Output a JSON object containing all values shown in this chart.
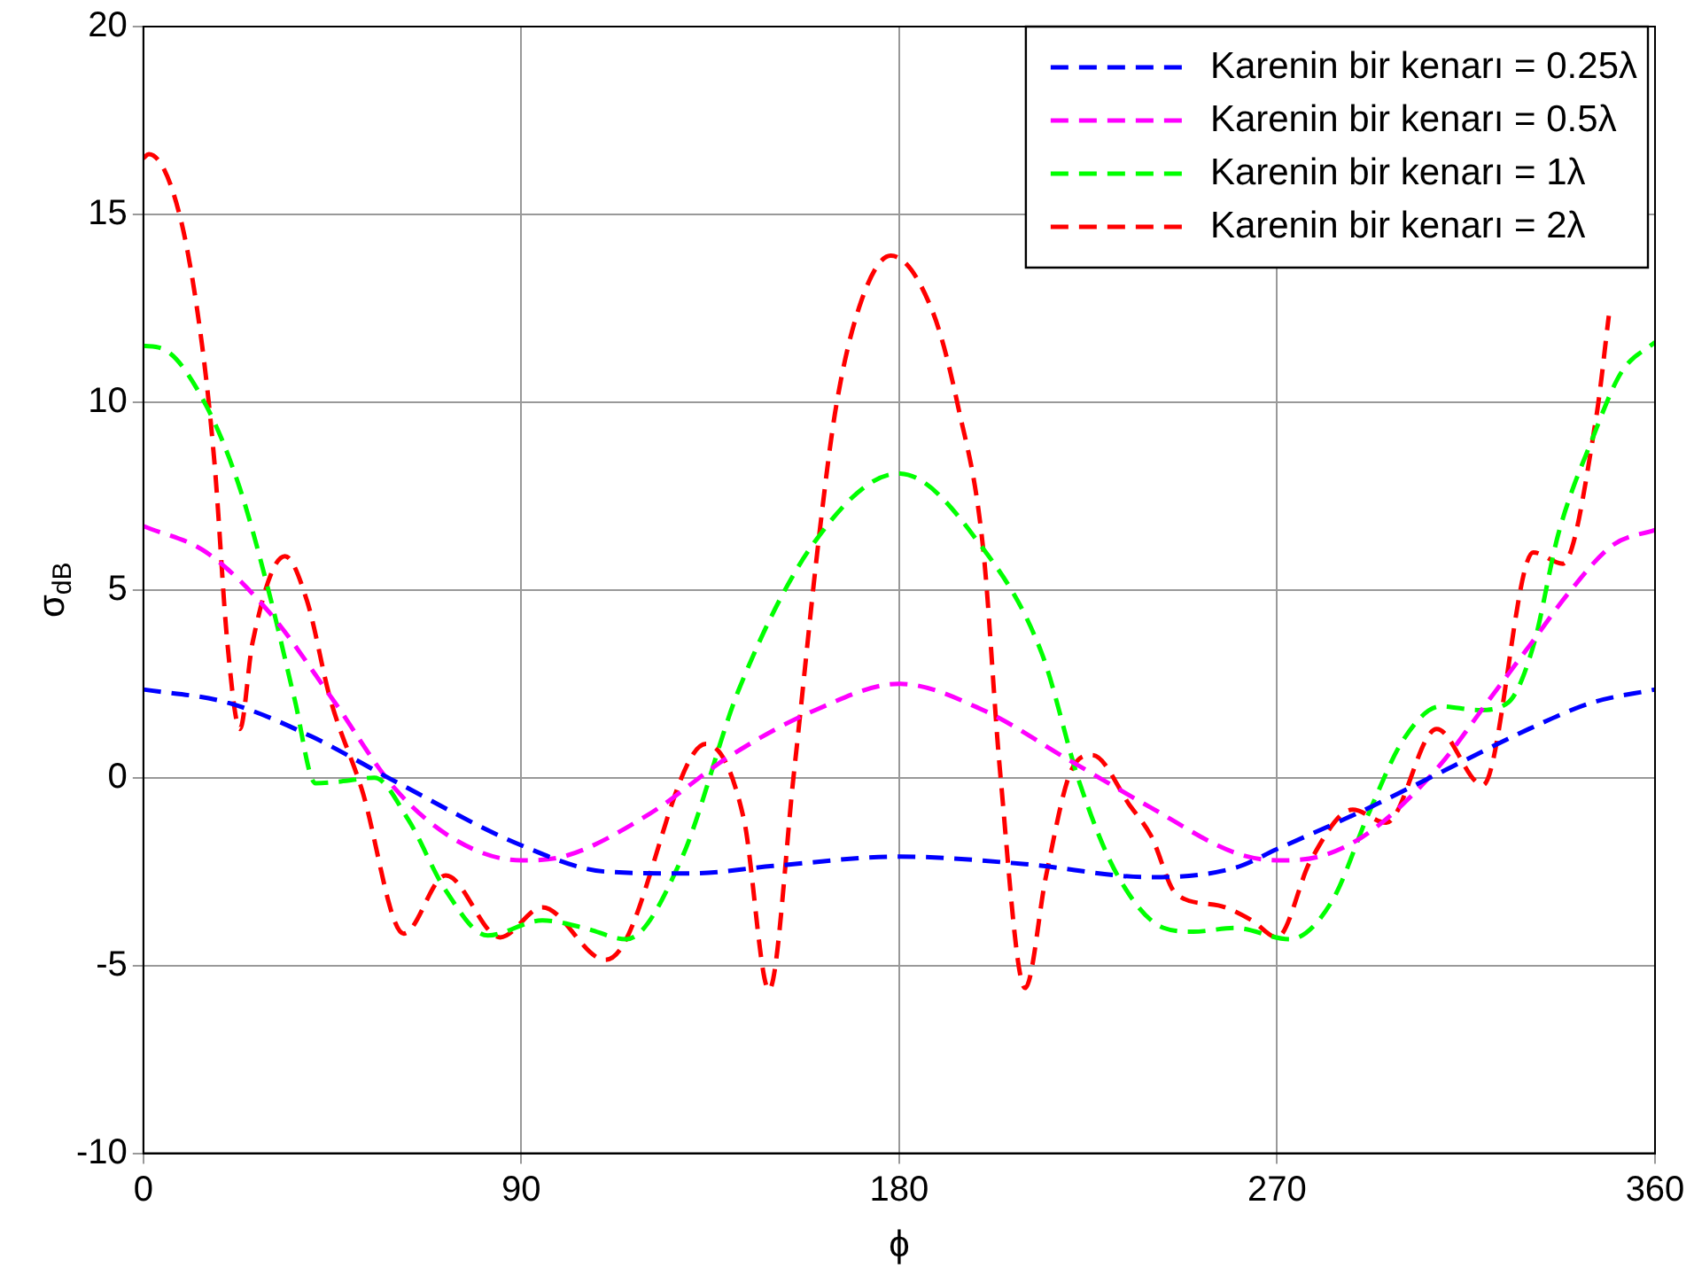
{
  "chart_data": {
    "type": "line",
    "xlabel": "ϕ",
    "ylabel": "σ$_{dB}$",
    "xlim": [
      0,
      360
    ],
    "xticks": [
      0,
      90,
      180,
      270,
      360
    ],
    "ylim": [
      -10,
      20
    ],
    "yticks": [
      -10,
      -5,
      0,
      5,
      10,
      15,
      20
    ],
    "grid": true,
    "legend": "top right",
    "series": [
      {
        "name": "Karenin bir kenarı = 0.25λ",
        "color": "#0000ff",
        "line_style": "dashed",
        "x": [
          0,
          20,
          40,
          60,
          90,
          110,
          130,
          150,
          180,
          210,
          240,
          260,
          270,
          290,
          310,
          330,
          345,
          360
        ],
        "values": [
          2.35,
          2.0,
          1.1,
          -0.1,
          -1.8,
          -2.5,
          -2.55,
          -2.35,
          -2.1,
          -2.3,
          -2.65,
          -2.4,
          -1.9,
          -0.9,
          0.2,
          1.3,
          2.0,
          2.35
        ]
      },
      {
        "name": "Karenin bir kenarı = 0.5λ",
        "color": "#ff00ff",
        "line_style": "dashed",
        "x": [
          0,
          15,
          30,
          45,
          60,
          75,
          90,
          100,
          120,
          140,
          160,
          180,
          200,
          220,
          240,
          260,
          270,
          280,
          290,
          300,
          310,
          320,
          330,
          340,
          350,
          360
        ],
        "values": [
          6.7,
          6.0,
          4.4,
          2.1,
          -0.3,
          -1.7,
          -2.2,
          -2.1,
          -1.0,
          0.6,
          1.8,
          2.5,
          1.8,
          0.5,
          -0.8,
          -2.0,
          -2.2,
          -2.1,
          -1.6,
          -0.7,
          0.5,
          2.0,
          3.5,
          5.0,
          6.2,
          6.6
        ]
      },
      {
        "name": "Karenin bir kenarı = 1λ",
        "color": "#00ff00",
        "line_style": "dashed",
        "x": [
          0,
          5,
          15,
          23,
          30,
          36,
          41,
          47,
          55,
          63,
          72,
          82,
          95,
          105,
          115,
          128,
          142,
          160,
          180,
          200,
          214,
          223,
          232,
          243,
          250,
          260,
          273,
          283,
          292,
          300,
          309,
          318,
          325,
          331,
          337,
          345,
          352,
          360
        ],
        "values": [
          11.5,
          11.4,
          9.9,
          7.7,
          4.9,
          2.1,
          -0.15,
          -0.1,
          0,
          -1.1,
          -3.0,
          -4.2,
          -3.8,
          -4.0,
          -4.3,
          -2.2,
          2.4,
          6.3,
          8.1,
          6.1,
          3.3,
          -0.15,
          -2.6,
          -4.0,
          -4.1,
          -4.0,
          -4.3,
          -3.3,
          -0.9,
          1.0,
          1.9,
          1.8,
          2.0,
          3.5,
          6.5,
          9.0,
          10.8,
          11.6
        ]
      },
      {
        "name": "Karenin bir kenarı = 2λ",
        "color": "#ff0000",
        "line_style": "dashed",
        "x": [
          0,
          1.3,
          8.6,
          14,
          17,
          20,
          23,
          26,
          33.7,
          39,
          44.5,
          52,
          62,
          72,
          85,
          95,
          110,
          114,
          134,
          143,
          149,
          155,
          161,
          165,
          171,
          178,
          188,
          194,
          200,
          204,
          210,
          215,
          221,
          226,
          235,
          240,
          246,
          256,
          264,
          270,
          278,
          288,
          296,
          308,
          319,
          331,
          338,
          346,
          349
        ],
        "values": [
          16.5,
          16.6,
          15.0,
          11.5,
          8.3,
          3.6,
          1.3,
          3.6,
          5.9,
          4.7,
          2.1,
          -0.3,
          -4.15,
          -2.6,
          -4.25,
          -3.45,
          -4.85,
          -4.5,
          0.9,
          -1.1,
          -5.65,
          0.2,
          6.5,
          9.9,
          12.7,
          13.9,
          12.4,
          9.9,
          6.1,
          0.2,
          -5.6,
          -2.6,
          0.2,
          0.6,
          -0.75,
          -1.55,
          -3.1,
          -3.4,
          -3.8,
          -4.25,
          -2.2,
          -0.85,
          -1.2,
          1.3,
          -0.2,
          6.0,
          5.7,
          9.6,
          12.3
        ]
      }
    ]
  }
}
